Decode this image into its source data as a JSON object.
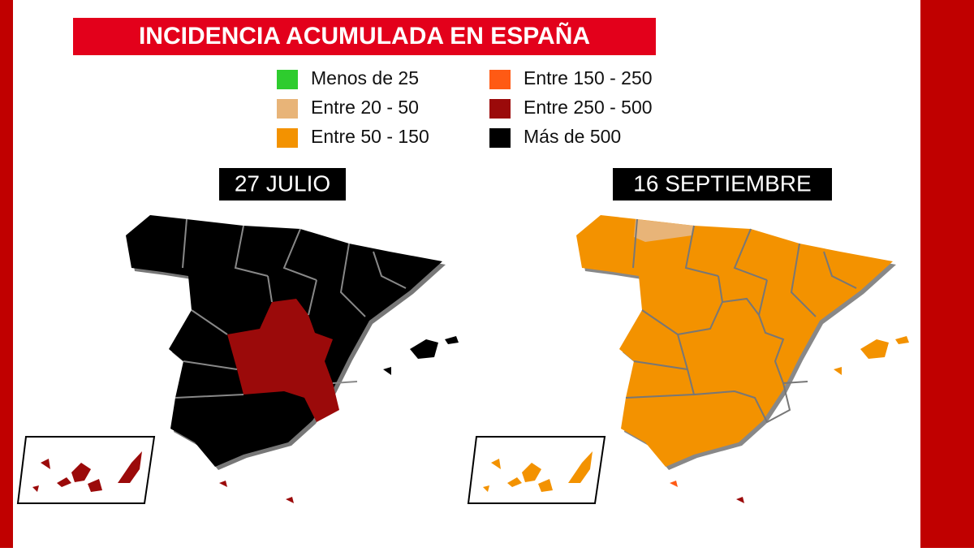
{
  "title": "INCIDENCIA ACUMULADA EN ESPAÑA",
  "legend": [
    {
      "label": "Menos de 25",
      "color": "#2ecc2e"
    },
    {
      "label": "Entre 20 - 50",
      "color": "#e8b478"
    },
    {
      "label": "Entre 50 - 150",
      "color": "#f39200"
    },
    {
      "label": "Entre 150 - 250",
      "color": "#ff5a14"
    },
    {
      "label": "Entre 250 - 500",
      "color": "#9b0a0a"
    },
    {
      "label": "Más de 500",
      "color": "#000000"
    }
  ],
  "maps": [
    {
      "label": "27 JULIO"
    },
    {
      "label": "16 SEPTIEMBRE"
    }
  ]
}
